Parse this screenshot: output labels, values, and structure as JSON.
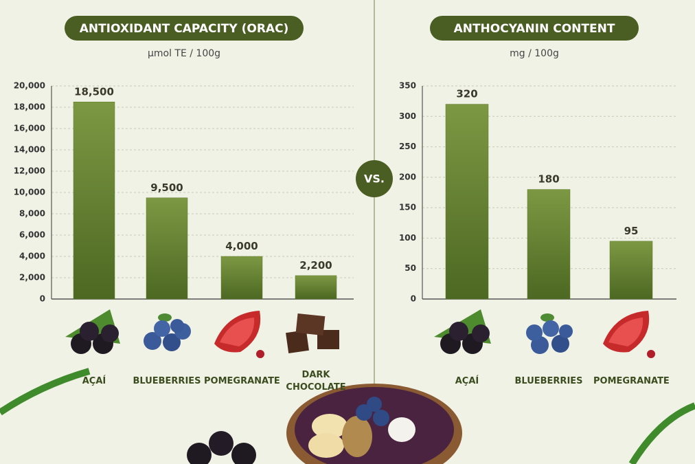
{
  "chart_data": [
    {
      "type": "bar",
      "title": "ANTIOXIDANT CAPACITY (ORAC)",
      "subtitle": "µmol TE / 100g",
      "categories": [
        "AÇAÍ",
        "BLUEBERRIES",
        "POMEGRANATE",
        "DARK CHOCOLATE"
      ],
      "values": [
        18500,
        9500,
        4000,
        2200
      ],
      "value_labels": [
        "18,500",
        "9,500",
        "4,000",
        "2,200"
      ],
      "ylim": [
        0,
        20000
      ],
      "yticks": [
        0,
        {
          "value": 2000,
          "label": "2,000"
        },
        {
          "value": 4000,
          "label": "4,000"
        },
        {
          "value": 6000,
          "label": "6,000"
        },
        {
          "value": 8000,
          "label": "8,000"
        },
        {
          "value": 10000,
          "label": "10,000"
        },
        {
          "value": 12000,
          "label": "12,000"
        },
        {
          "value": 14000,
          "label": "14,000"
        },
        {
          "value": 16000,
          "label": "16,000"
        },
        {
          "value": 18000,
          "label": "18,000"
        },
        {
          "value": 20000,
          "label": "20,000"
        }
      ],
      "grid": true,
      "color": "#5f7a2c"
    },
    {
      "type": "bar",
      "title": "ANTHOCYANIN CONTENT",
      "subtitle": "mg / 100g",
      "categories": [
        "AÇAÍ",
        "BLUEBERRIES",
        "POMEGRANATE"
      ],
      "values": [
        320,
        180,
        95
      ],
      "ylim": [
        0,
        350
      ],
      "yticks": [
        0,
        50,
        100,
        150,
        200,
        250,
        300,
        350
      ],
      "grid": true,
      "color": "#5f7a2c"
    }
  ],
  "divider_label": "VS."
}
